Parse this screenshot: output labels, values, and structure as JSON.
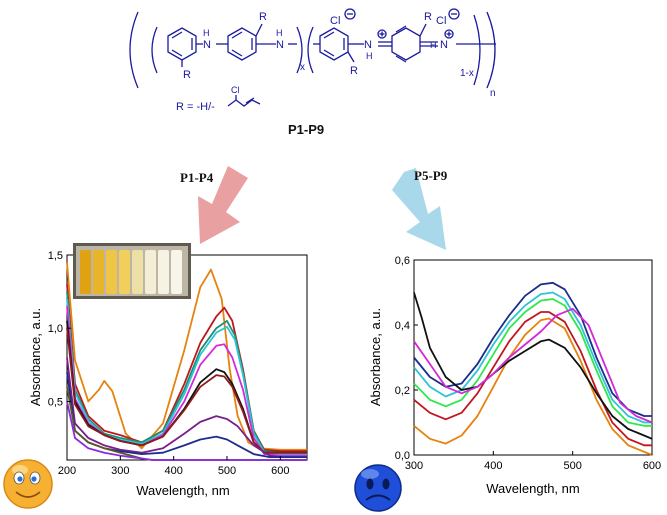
{
  "structure": {
    "label_R": "R",
    "label_NH": "N",
    "label_H": "H",
    "label_Cl": "Cl",
    "label_x": "x",
    "label_1x": "1-x",
    "label_n": "n",
    "substituent": "R = -H/-",
    "substituent_cl": "Cl",
    "compound_id": "P1-P9"
  },
  "arrows": {
    "left_label": "P1-P4",
    "right_label": "P5-P9",
    "left_color": "#e8a0a0",
    "right_color": "#a9d8ea"
  },
  "chart_data": [
    {
      "type": "line",
      "xlabel": "Wavelength, nm",
      "ylabel": "Absorbance, a.u.",
      "xlim": [
        200,
        650
      ],
      "ylim": [
        0.1,
        1.5
      ],
      "xticks": [
        200,
        300,
        400,
        500,
        600
      ],
      "yticks": [
        0.5,
        1.0,
        1.5
      ],
      "ytick_labels": [
        "0,5",
        "1,0",
        "1,5"
      ],
      "grid": false,
      "legend": "none",
      "inset": "photo of nine vials, yellow to colourless",
      "series": [
        {
          "color": "#e6820e",
          "x": [
            200,
            215,
            240,
            260,
            270,
            285,
            310,
            340,
            380,
            420,
            450,
            470,
            490,
            505,
            520,
            540,
            560,
            600,
            650
          ],
          "y": [
            1.45,
            0.78,
            0.5,
            0.58,
            0.64,
            0.57,
            0.28,
            0.18,
            0.35,
            0.85,
            1.28,
            1.4,
            1.2,
            0.72,
            0.4,
            0.22,
            0.18,
            0.17,
            0.17
          ]
        },
        {
          "color": "#c0171e",
          "x": [
            200,
            215,
            240,
            270,
            300,
            340,
            380,
            420,
            450,
            480,
            495,
            510,
            530,
            550,
            570,
            600,
            650
          ],
          "y": [
            1.3,
            0.62,
            0.4,
            0.3,
            0.27,
            0.22,
            0.3,
            0.62,
            0.9,
            1.08,
            1.14,
            1.05,
            0.72,
            0.3,
            0.17,
            0.16,
            0.16
          ]
        },
        {
          "color": "#1f8f70",
          "x": [
            200,
            215,
            240,
            270,
            300,
            340,
            380,
            420,
            450,
            480,
            500,
            515,
            530,
            550,
            570,
            600,
            650
          ],
          "y": [
            1.25,
            0.58,
            0.38,
            0.28,
            0.25,
            0.22,
            0.3,
            0.58,
            0.85,
            1.0,
            1.05,
            0.95,
            0.7,
            0.3,
            0.16,
            0.15,
            0.15
          ]
        },
        {
          "color": "#2ec4d6",
          "x": [
            200,
            215,
            240,
            270,
            300,
            340,
            380,
            420,
            450,
            480,
            500,
            515,
            530,
            550,
            570,
            600,
            650
          ],
          "y": [
            1.2,
            0.56,
            0.37,
            0.27,
            0.24,
            0.21,
            0.28,
            0.55,
            0.82,
            0.97,
            1.01,
            0.92,
            0.68,
            0.28,
            0.15,
            0.14,
            0.14
          ]
        },
        {
          "color": "#d22ad8",
          "x": [
            200,
            215,
            240,
            270,
            300,
            340,
            380,
            420,
            450,
            480,
            495,
            510,
            530,
            550,
            570,
            600,
            650
          ],
          "y": [
            1.15,
            0.52,
            0.35,
            0.27,
            0.23,
            0.2,
            0.27,
            0.5,
            0.75,
            0.88,
            0.89,
            0.8,
            0.58,
            0.25,
            0.14,
            0.13,
            0.13
          ]
        },
        {
          "color": "#111111",
          "x": [
            200,
            215,
            240,
            270,
            300,
            340,
            380,
            420,
            450,
            480,
            495,
            510,
            530,
            550,
            570,
            600,
            650
          ],
          "y": [
            1.05,
            0.5,
            0.34,
            0.27,
            0.23,
            0.2,
            0.26,
            0.45,
            0.63,
            0.72,
            0.7,
            0.62,
            0.45,
            0.22,
            0.15,
            0.15,
            0.15
          ]
        },
        {
          "color": "#8e1b1b",
          "x": [
            200,
            215,
            240,
            270,
            300,
            340,
            380,
            420,
            450,
            480,
            495,
            510,
            530,
            550,
            570,
            600,
            650
          ],
          "y": [
            1.0,
            0.48,
            0.33,
            0.27,
            0.23,
            0.2,
            0.26,
            0.44,
            0.6,
            0.68,
            0.67,
            0.6,
            0.43,
            0.22,
            0.15,
            0.15,
            0.15
          ]
        },
        {
          "color": "#7a1e8c",
          "x": [
            200,
            215,
            240,
            270,
            300,
            340,
            380,
            420,
            450,
            480,
            500,
            520,
            550,
            580,
            600,
            650
          ],
          "y": [
            0.8,
            0.35,
            0.25,
            0.2,
            0.17,
            0.15,
            0.18,
            0.28,
            0.36,
            0.4,
            0.38,
            0.33,
            0.2,
            0.13,
            0.12,
            0.12
          ]
        },
        {
          "color": "#1c2e8c",
          "x": [
            200,
            215,
            240,
            270,
            300,
            340,
            380,
            420,
            450,
            480,
            500,
            520,
            550,
            580,
            600,
            650
          ],
          "y": [
            0.7,
            0.3,
            0.22,
            0.18,
            0.16,
            0.14,
            0.15,
            0.2,
            0.24,
            0.26,
            0.24,
            0.2,
            0.14,
            0.12,
            0.12,
            0.12
          ]
        },
        {
          "color": "#5a5a1e",
          "x": [
            200,
            215,
            240,
            270,
            300,
            320,
            340,
            360,
            380,
            420,
            500,
            650
          ],
          "y": [
            0.6,
            0.3,
            0.22,
            0.18,
            0.15,
            0.13,
            0.11,
            0.1,
            0.1,
            0.1,
            0.1,
            0.1
          ]
        },
        {
          "color": "#8a2be2",
          "x": [
            200,
            215,
            240,
            270,
            300,
            320,
            340,
            360,
            380,
            420,
            500,
            650
          ],
          "y": [
            0.5,
            0.25,
            0.18,
            0.15,
            0.13,
            0.12,
            0.11,
            0.1,
            0.1,
            0.1,
            0.1,
            0.1
          ]
        }
      ]
    },
    {
      "type": "line",
      "xlabel": "Wavelength, nm",
      "ylabel": "Absorbance, a.u.",
      "xlim": [
        300,
        600
      ],
      "ylim": [
        0.0,
        0.6
      ],
      "xticks": [
        300,
        400,
        500,
        600
      ],
      "yticks": [
        0.0,
        0.2,
        0.4,
        0.6
      ],
      "ytick_labels": [
        "0,0",
        "0,2",
        "0,4",
        "0,6"
      ],
      "grid": false,
      "legend": "none",
      "series": [
        {
          "color": "#1c2e8c",
          "x": [
            300,
            320,
            340,
            360,
            380,
            400,
            420,
            440,
            460,
            475,
            490,
            510,
            530,
            550,
            570,
            590,
            600
          ],
          "y": [
            0.3,
            0.24,
            0.21,
            0.22,
            0.28,
            0.36,
            0.43,
            0.49,
            0.525,
            0.53,
            0.51,
            0.43,
            0.3,
            0.19,
            0.14,
            0.12,
            0.12
          ]
        },
        {
          "color": "#2ec4d6",
          "x": [
            300,
            320,
            340,
            360,
            380,
            400,
            420,
            440,
            460,
            475,
            490,
            510,
            530,
            550,
            570,
            590,
            600
          ],
          "y": [
            0.27,
            0.21,
            0.18,
            0.2,
            0.26,
            0.34,
            0.41,
            0.46,
            0.495,
            0.5,
            0.48,
            0.4,
            0.28,
            0.17,
            0.12,
            0.1,
            0.1
          ]
        },
        {
          "color": "#2ee84b",
          "x": [
            300,
            320,
            340,
            360,
            380,
            400,
            420,
            440,
            460,
            475,
            490,
            510,
            530,
            550,
            570,
            590,
            600
          ],
          "y": [
            0.22,
            0.17,
            0.15,
            0.17,
            0.23,
            0.31,
            0.39,
            0.44,
            0.475,
            0.48,
            0.46,
            0.38,
            0.26,
            0.15,
            0.1,
            0.09,
            0.09
          ]
        },
        {
          "color": "#c0171e",
          "x": [
            300,
            320,
            340,
            360,
            380,
            400,
            420,
            440,
            460,
            470,
            490,
            510,
            530,
            550,
            570,
            590,
            600
          ],
          "y": [
            0.17,
            0.13,
            0.11,
            0.13,
            0.19,
            0.27,
            0.35,
            0.41,
            0.44,
            0.44,
            0.41,
            0.32,
            0.2,
            0.1,
            0.05,
            0.03,
            0.03
          ]
        },
        {
          "color": "#e6820e",
          "x": [
            300,
            320,
            340,
            360,
            380,
            400,
            420,
            440,
            460,
            470,
            490,
            510,
            530,
            550,
            570,
            590,
            600
          ],
          "y": [
            0.09,
            0.05,
            0.035,
            0.06,
            0.12,
            0.21,
            0.3,
            0.37,
            0.415,
            0.42,
            0.39,
            0.29,
            0.17,
            0.08,
            0.03,
            0.01,
            0.0
          ]
        },
        {
          "color": "#111111",
          "x": [
            300,
            310,
            320,
            340,
            360,
            380,
            400,
            420,
            440,
            460,
            470,
            490,
            510,
            530,
            550,
            570,
            590,
            600
          ],
          "y": [
            0.5,
            0.42,
            0.33,
            0.24,
            0.2,
            0.21,
            0.25,
            0.29,
            0.32,
            0.35,
            0.355,
            0.33,
            0.27,
            0.19,
            0.12,
            0.08,
            0.06,
            0.05
          ]
        },
        {
          "color": "#d22ad8",
          "x": [
            300,
            320,
            340,
            360,
            380,
            400,
            420,
            440,
            460,
            480,
            500,
            520,
            540,
            560,
            580,
            600
          ],
          "y": [
            0.35,
            0.28,
            0.21,
            0.19,
            0.21,
            0.25,
            0.3,
            0.34,
            0.38,
            0.43,
            0.45,
            0.4,
            0.28,
            0.16,
            0.12,
            0.1
          ]
        }
      ]
    }
  ]
}
